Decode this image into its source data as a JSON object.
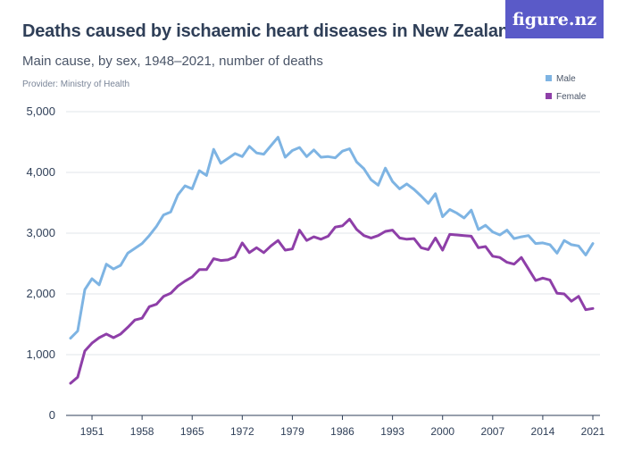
{
  "header": {
    "title": "Deaths caused by ischaemic heart diseases in New Zealand",
    "subtitle": "Main cause, by sex, 1948–2021, number of deaths",
    "provider": "Provider: Ministry of Health",
    "logo": "figure.nz"
  },
  "colors": {
    "male": "#7eb4e3",
    "female": "#8e3fa8",
    "grid": "#e2e5ea",
    "axis": "#2f3f58"
  },
  "chart_data": {
    "type": "line",
    "xlim": [
      1948,
      2021
    ],
    "ylim": [
      0,
      5000
    ],
    "yticks": [
      0,
      1000,
      2000,
      3000,
      4000,
      5000
    ],
    "ytick_labels": [
      "0",
      "1,000",
      "2,000",
      "3,000",
      "4,000",
      "5,000"
    ],
    "xtick_labels": [
      "1951",
      "1958",
      "1965",
      "1972",
      "1979",
      "1986",
      "1993",
      "2000",
      "2007",
      "2014",
      "2021"
    ],
    "grid": true,
    "legend": "top-right",
    "x": [
      1948,
      1949,
      1950,
      1951,
      1952,
      1953,
      1954,
      1955,
      1956,
      1957,
      1958,
      1959,
      1960,
      1961,
      1962,
      1963,
      1964,
      1965,
      1966,
      1967,
      1968,
      1969,
      1970,
      1971,
      1972,
      1973,
      1974,
      1975,
      1976,
      1977,
      1978,
      1979,
      1980,
      1981,
      1982,
      1983,
      1984,
      1985,
      1986,
      1987,
      1988,
      1989,
      1990,
      1991,
      1992,
      1993,
      1994,
      1995,
      1996,
      1997,
      1998,
      1999,
      2000,
      2001,
      2002,
      2003,
      2004,
      2005,
      2006,
      2007,
      2008,
      2009,
      2010,
      2011,
      2012,
      2013,
      2014,
      2015,
      2016,
      2017,
      2018,
      2019,
      2020,
      2021
    ],
    "series": [
      {
        "name": "Male",
        "values": [
          1270,
          1390,
          2070,
          2250,
          2150,
          2490,
          2410,
          2470,
          2670,
          2750,
          2830,
          2960,
          3110,
          3300,
          3350,
          3630,
          3780,
          3730,
          4030,
          3950,
          4380,
          4150,
          4230,
          4310,
          4260,
          4430,
          4320,
          4300,
          4440,
          4580,
          4250,
          4360,
          4410,
          4260,
          4370,
          4250,
          4260,
          4240,
          4350,
          4390,
          4170,
          4060,
          3880,
          3790,
          4070,
          3850,
          3730,
          3810,
          3720,
          3610,
          3490,
          3650,
          3270,
          3390,
          3330,
          3250,
          3380,
          3060,
          3130,
          3020,
          2970,
          3050,
          2910,
          2940,
          2960,
          2830,
          2840,
          2810,
          2670,
          2880,
          2810,
          2790,
          2640,
          2830
        ]
      },
      {
        "name": "Female",
        "values": [
          530,
          630,
          1060,
          1190,
          1280,
          1340,
          1280,
          1340,
          1450,
          1570,
          1600,
          1790,
          1830,
          1960,
          2010,
          2130,
          2210,
          2280,
          2400,
          2400,
          2580,
          2550,
          2560,
          2610,
          2840,
          2680,
          2760,
          2680,
          2790,
          2880,
          2720,
          2740,
          3050,
          2880,
          2940,
          2900,
          2950,
          3100,
          3120,
          3230,
          3060,
          2960,
          2920,
          2960,
          3030,
          3050,
          2920,
          2900,
          2910,
          2760,
          2730,
          2920,
          2720,
          2980,
          2970,
          2960,
          2950,
          2760,
          2780,
          2620,
          2600,
          2520,
          2490,
          2600,
          2410,
          2220,
          2260,
          2230,
          2010,
          2000,
          1880,
          1960,
          1740,
          1760
        ]
      }
    ]
  }
}
